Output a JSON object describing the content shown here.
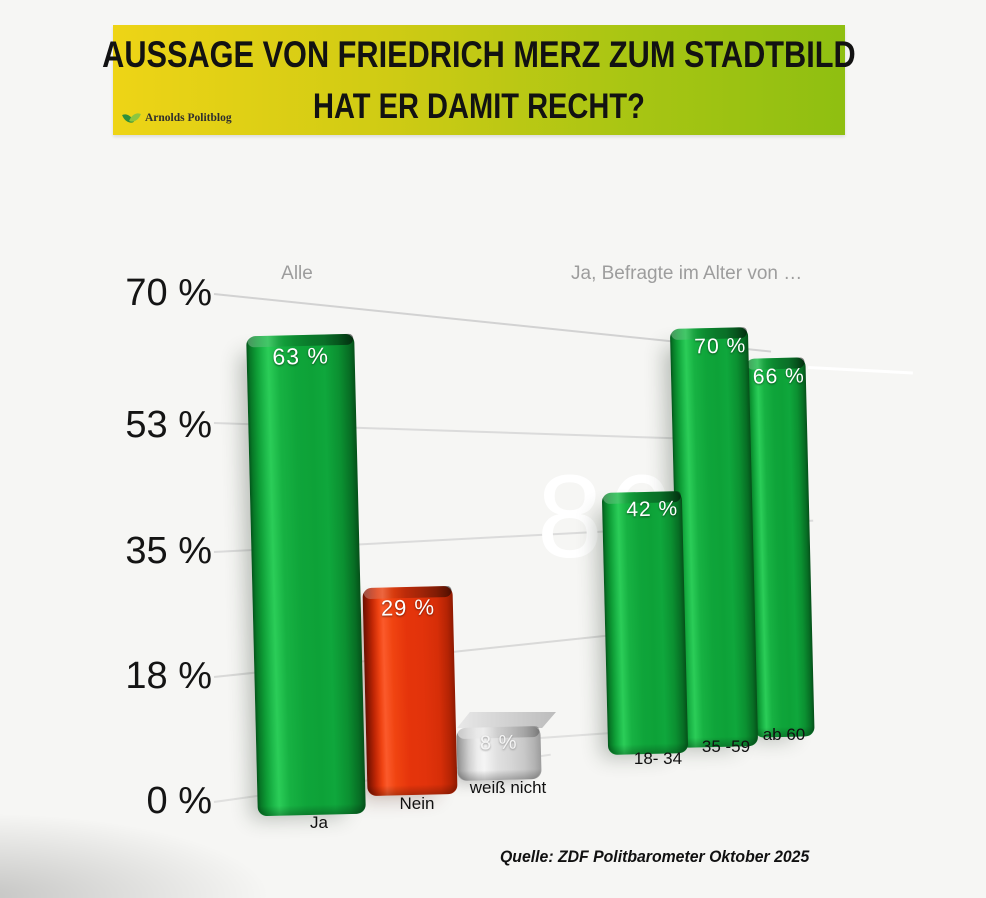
{
  "banner": {
    "title_line1": "AUSSAGE VON FRIEDRICH MERZ ZUM STADTBILD",
    "title_line2": "HAT ER DAMIT RECHT?",
    "logo_text": "Arnolds Politblog",
    "colors": {
      "gradient_left": "#eed416",
      "gradient_right": "#8fbf11",
      "text": "#121212"
    }
  },
  "chart_data": {
    "type": "bar",
    "title": "Aussage von Friedrich Merz zum Stadtbild – Hat er damit recht?",
    "unit": "%",
    "ylim": [
      0,
      70
    ],
    "grid": true,
    "legend_position": "none",
    "y_tick_labels": [
      "70 %",
      "53 %",
      "35 %",
      "18 %",
      "0 %"
    ],
    "group_labels": [
      "Alle",
      "Ja, Befragte im Alter von …"
    ],
    "categories": [
      "Ja",
      "Nein",
      "weiß nicht",
      "18- 34",
      "35 -59",
      "ab 60"
    ],
    "values": [
      63,
      29,
      8,
      42,
      70,
      66
    ],
    "value_labels": [
      "63 %",
      "29 %",
      "8 %",
      "42 %",
      "70 %",
      "66 %"
    ],
    "series": [
      {
        "name": "Alle",
        "categories": [
          "Ja",
          "Nein",
          "weiß nicht"
        ],
        "values": [
          63,
          29,
          8
        ]
      },
      {
        "name": "Ja, Befragte im Alter von …",
        "categories": [
          "18- 34",
          "35 -59",
          "ab 60"
        ],
        "values": [
          42,
          70,
          66
        ]
      }
    ],
    "bar_colors": [
      "#12a53e",
      "#e8350c",
      "#d9d9d9",
      "#12a53e",
      "#12a53e",
      "#12a53e"
    ],
    "watermark": "86",
    "source": "Quelle: ZDF Politbarometer Oktober 2025"
  }
}
